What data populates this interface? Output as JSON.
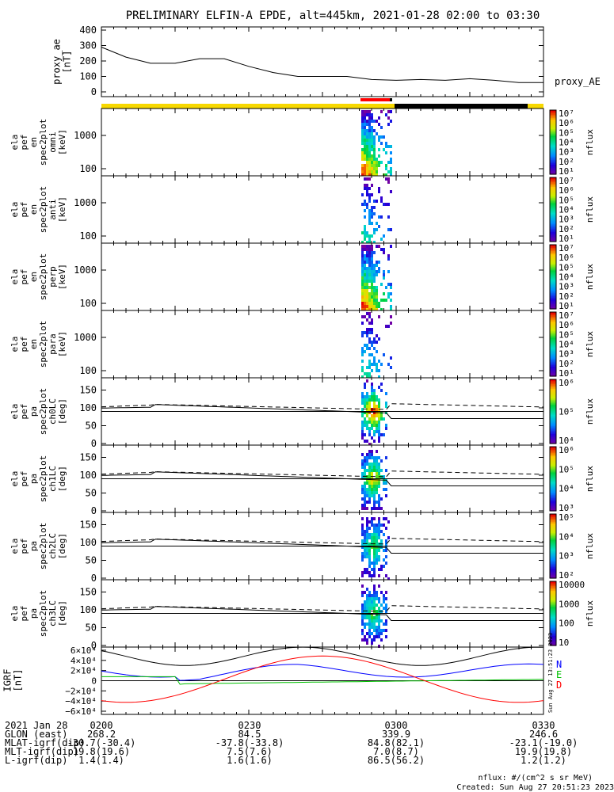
{
  "title": "PRELIMINARY ELFIN-A EPDE, alt=445km, 2021-01-28 02:00 to 03:30",
  "colors": {
    "bar_yellow": "#f7d800",
    "bar_red": "#ff0000",
    "bar_black": "#000000",
    "igrf_n": "#0000ff",
    "igrf_e": "#00c000",
    "igrf_d": "#ff0000"
  },
  "chart_data": [
    {
      "type": "line",
      "id": "proxy_ae",
      "ylabel": [
        "proxy_ae",
        "[nT]"
      ],
      "legend": "proxy_AE",
      "yticks": [
        "400",
        "300",
        "200",
        "100",
        "0"
      ],
      "ylim": [
        0,
        400
      ],
      "x_minutes": [
        0,
        5,
        10,
        15,
        20,
        25,
        30,
        35,
        40,
        45,
        50,
        55,
        60,
        65,
        70,
        75,
        80,
        85,
        90
      ],
      "values": [
        290,
        225,
        185,
        185,
        215,
        215,
        165,
        125,
        100,
        100,
        100,
        80,
        75,
        80,
        75,
        85,
        75,
        60,
        60
      ]
    },
    {
      "type": "heatmap",
      "id": "en_omni",
      "ylabel": [
        "ela",
        "pef",
        "en",
        "spec2plot",
        "omni",
        "[keV]"
      ],
      "yticks": [
        "1000",
        "100"
      ],
      "scale": "log",
      "cbar_ticks": [
        "10⁷",
        "10⁶",
        "10⁵",
        "10⁴",
        "10³",
        "10²",
        "10¹"
      ],
      "cbar_label": "nflux"
    },
    {
      "type": "heatmap",
      "id": "en_anti",
      "ylabel": [
        "ela",
        "pef",
        "en",
        "spec2plot",
        "anti",
        "[keV]"
      ],
      "yticks": [
        "1000",
        "100"
      ],
      "scale": "log",
      "cbar_ticks": [
        "10⁷",
        "10⁶",
        "10⁵",
        "10⁴",
        "10³",
        "10²",
        "10¹"
      ],
      "cbar_label": "nflux"
    },
    {
      "type": "heatmap",
      "id": "en_perp",
      "ylabel": [
        "ela",
        "pef",
        "en",
        "spec2plot",
        "perp",
        "[keV]"
      ],
      "yticks": [
        "1000",
        "100"
      ],
      "scale": "log",
      "cbar_ticks": [
        "10⁷",
        "10⁶",
        "10⁵",
        "10⁴",
        "10³",
        "10²",
        "10¹"
      ],
      "cbar_label": "nflux"
    },
    {
      "type": "heatmap",
      "id": "en_para",
      "ylabel": [
        "ela",
        "pef",
        "en",
        "spec2plot",
        "para",
        "[keV]"
      ],
      "yticks": [
        "1000",
        "100"
      ],
      "scale": "log",
      "cbar_ticks": [
        "10⁷",
        "10⁶",
        "10⁵",
        "10⁴",
        "10³",
        "10²",
        "10¹"
      ],
      "cbar_label": "nflux"
    },
    {
      "type": "heatmap",
      "id": "pa_ch0",
      "ylabel": [
        "ela",
        "pef",
        "pa",
        "spec2plot",
        "ch0LC",
        "[deg]"
      ],
      "yticks": [
        "150",
        "100",
        "50",
        "0"
      ],
      "ylim": [
        0,
        180
      ],
      "cbar_ticks": [
        "10⁶",
        "10⁵",
        "10⁴"
      ],
      "cbar_label": "nflux"
    },
    {
      "type": "heatmap",
      "id": "pa_ch1",
      "ylabel": [
        "ela",
        "pef",
        "pa",
        "spec2plot",
        "ch1LC",
        "[deg]"
      ],
      "yticks": [
        "150",
        "100",
        "50",
        "0"
      ],
      "ylim": [
        0,
        180
      ],
      "cbar_ticks": [
        "10⁶",
        "10⁵",
        "10⁴",
        "10³"
      ],
      "cbar_label": "nflux"
    },
    {
      "type": "heatmap",
      "id": "pa_ch2",
      "ylabel": [
        "ela",
        "pef",
        "pa",
        "spec2plot",
        "ch2LC",
        "[deg]"
      ],
      "yticks": [
        "150",
        "100",
        "50",
        "0"
      ],
      "ylim": [
        0,
        180
      ],
      "cbar_ticks": [
        "10⁵",
        "10⁴",
        "10³",
        "10²"
      ],
      "cbar_label": "nflux"
    },
    {
      "type": "heatmap",
      "id": "pa_ch3",
      "ylabel": [
        "ela",
        "pef",
        "pa",
        "spec2plot",
        "ch3LC",
        "[deg]"
      ],
      "yticks": [
        "150",
        "100",
        "50",
        "0"
      ],
      "ylim": [
        0,
        180
      ],
      "cbar_ticks": [
        "10000",
        "1000",
        "100",
        "10"
      ],
      "cbar_label": "nflux"
    },
    {
      "type": "line",
      "id": "igrf",
      "ylabel": [
        "IGRF",
        "[nT]"
      ],
      "yticks": [
        "6×10⁴",
        "4×10⁴",
        "2×10⁴",
        "0",
        "−2×10⁴",
        "−4×10⁴",
        "−6×10⁴"
      ],
      "ylim": [
        -60000,
        60000
      ],
      "series": [
        {
          "name": "N",
          "color": "#0000ff"
        },
        {
          "name": "E",
          "color": "#00c000"
        },
        {
          "name": "D",
          "color": "#ff0000"
        }
      ]
    }
  ],
  "footer": {
    "rows": [
      [
        "2021 Jan 28",
        "0200",
        "0230",
        "0300",
        "0330"
      ],
      [
        "GLON (east)",
        "268.2",
        "84.5",
        "339.9",
        "246.6"
      ],
      [
        "MLAT-igrf(dip)",
        "-30.7(-30.4)",
        "-37.8(-33.8)",
        "84.8(82.1)",
        "-23.1(-19.0)"
      ],
      [
        "MLT-igrf(dip)",
        "19.8(19.6)",
        "7.5(7.6)",
        "7.0(8.7)",
        "19.9(19.8)"
      ],
      [
        "L-igrf(dip)",
        "1.4(1.4)",
        "1.6(1.6)",
        "86.5(56.2)",
        "1.2(1.2)"
      ]
    ],
    "units_note": "nflux: #/(cm^2 s sr MeV)",
    "created": "Created: Sun Aug 27 20:51:23 2023",
    "side_stamp": "Sun Aug 27 13:51:23 2023"
  }
}
